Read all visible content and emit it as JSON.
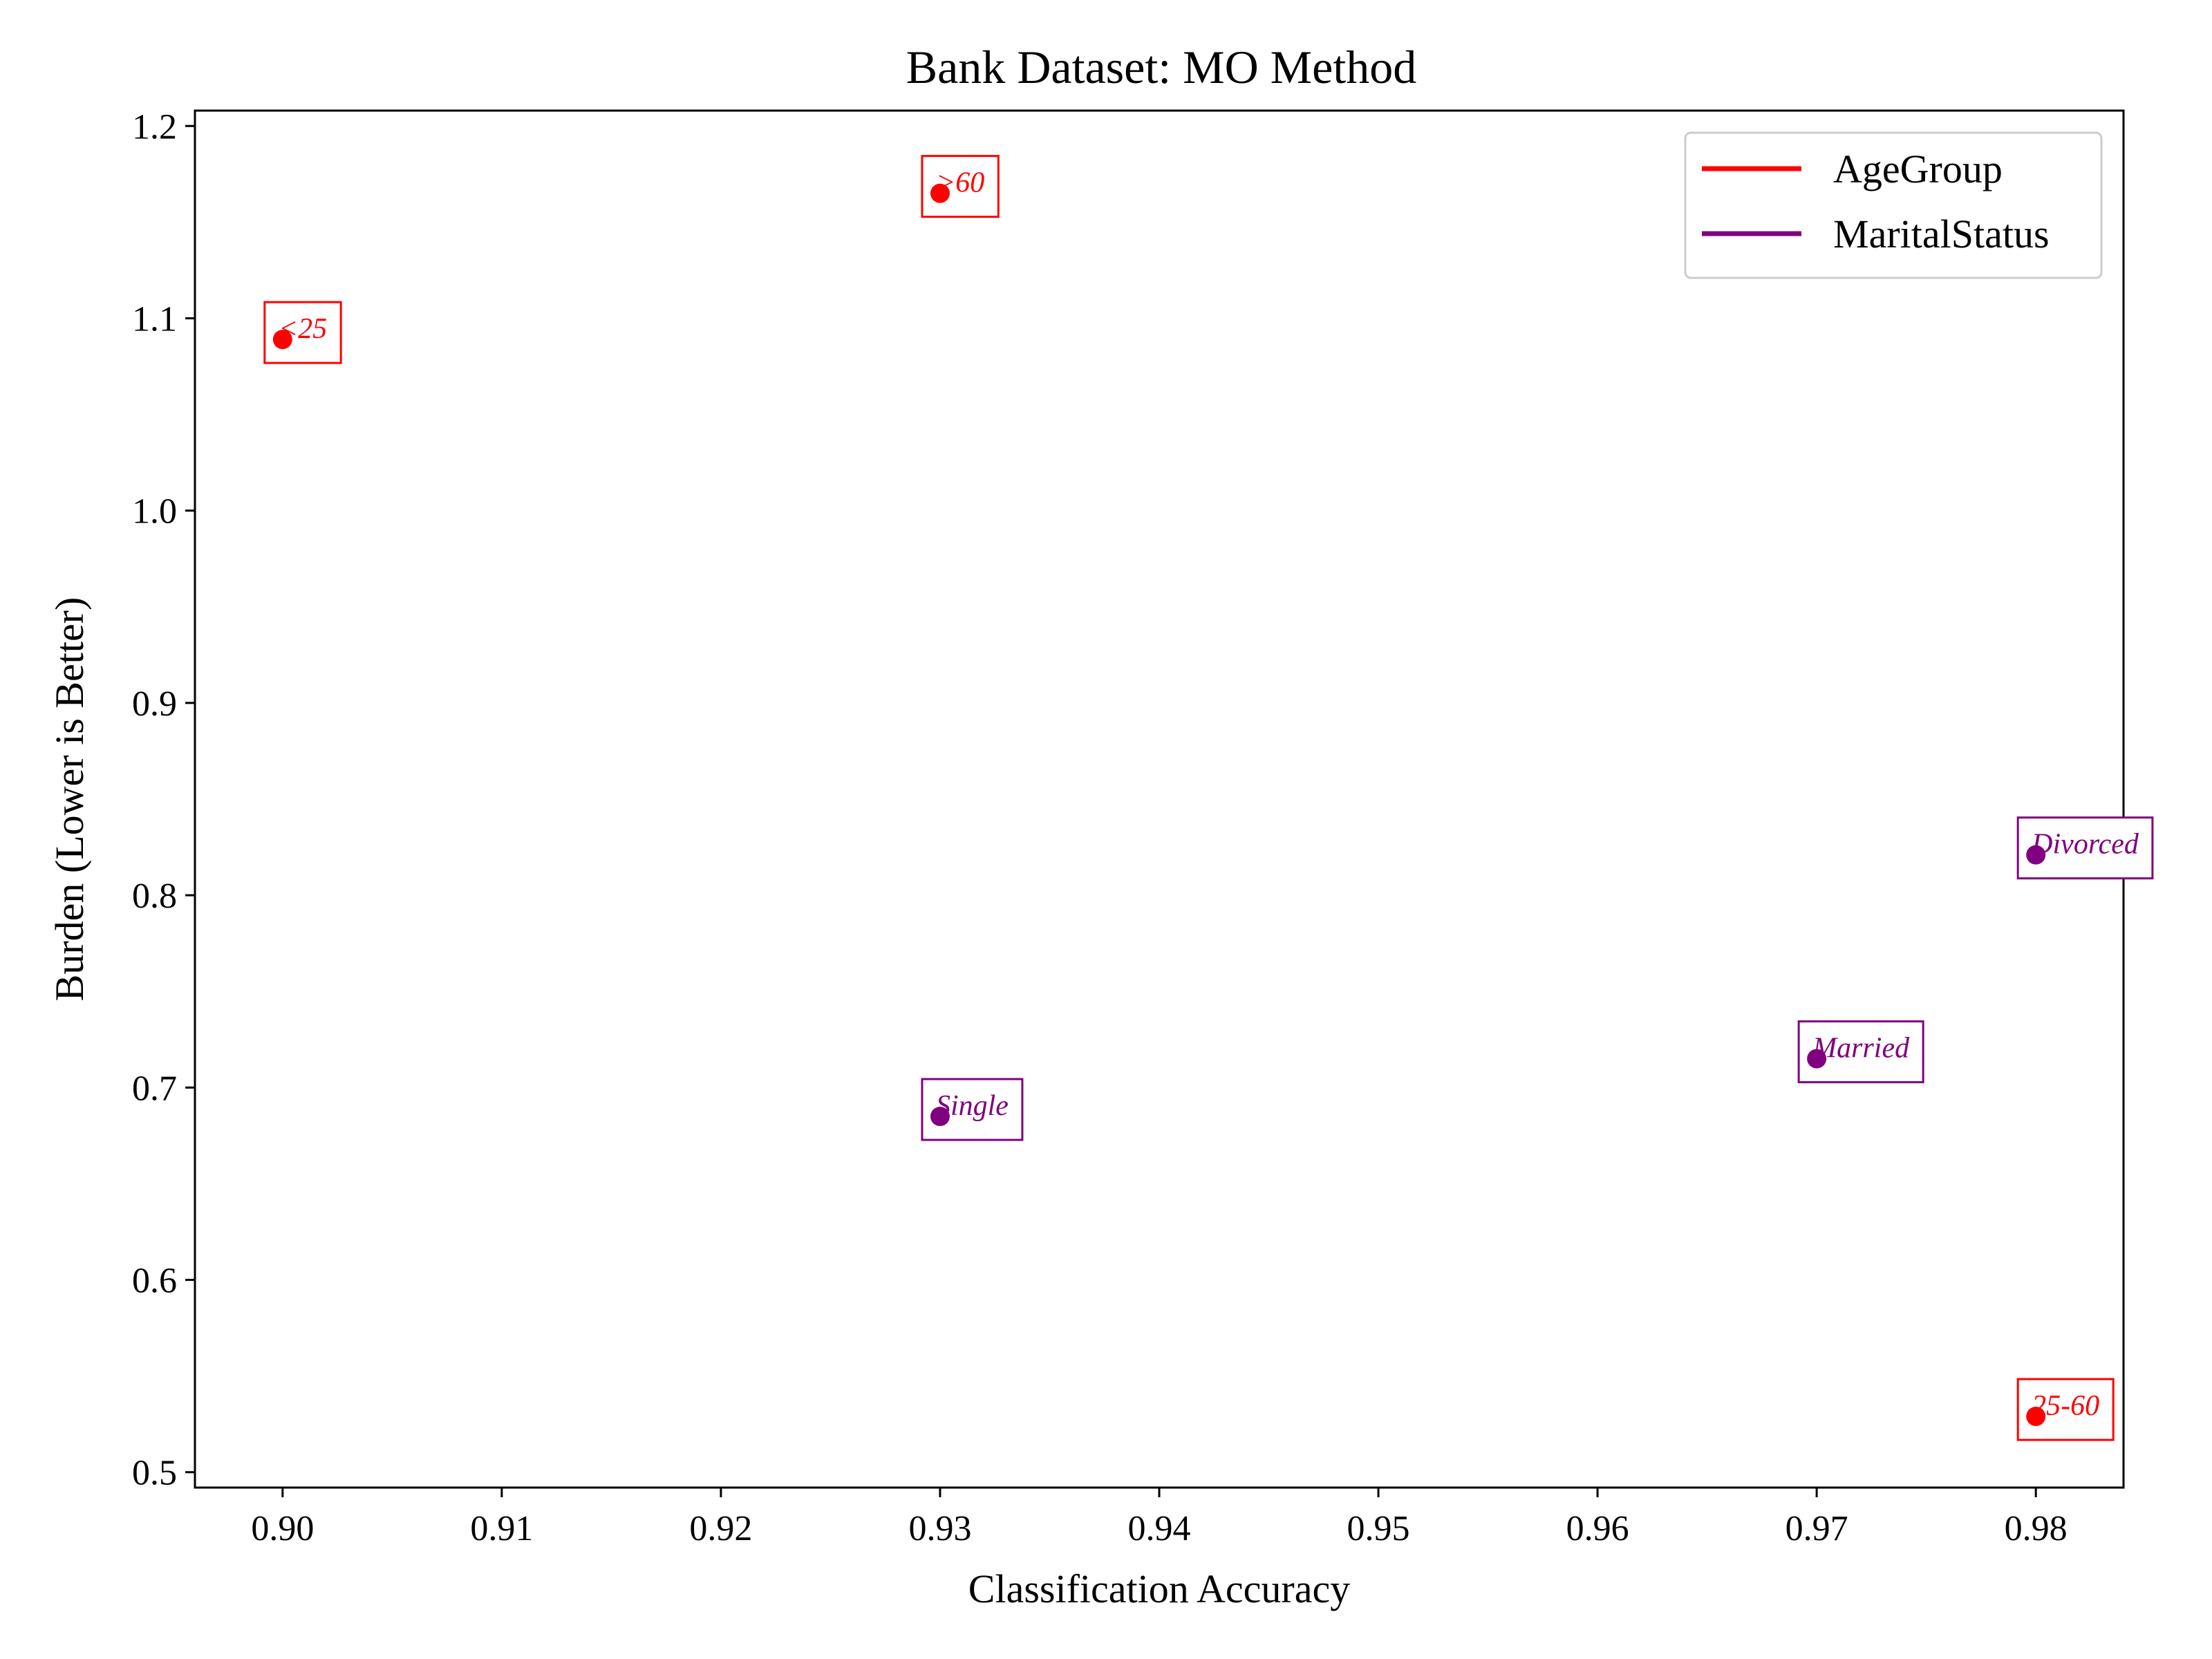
{
  "chart_data": {
    "type": "scatter",
    "title": "Bank Dataset: MO Method",
    "xlabel": "Classification Accuracy",
    "ylabel": "Burden (Lower is Better)",
    "xlim": [
      0.896,
      0.984
    ],
    "ylim": [
      0.492,
      1.208
    ],
    "x_ticks": [
      "0.90",
      "0.91",
      "0.92",
      "0.93",
      "0.94",
      "0.95",
      "0.96",
      "0.97",
      "0.98"
    ],
    "y_ticks": [
      "0.5",
      "0.6",
      "0.7",
      "0.8",
      "0.9",
      "1.0",
      "1.1",
      "1.2"
    ],
    "grid": false,
    "legend_position": "top-right",
    "series": [
      {
        "name": "AgeGroup",
        "color": "#ff0000",
        "points": [
          {
            "label": "<25",
            "x": 0.9,
            "y": 1.089
          },
          {
            "label": ">60",
            "x": 0.93,
            "y": 1.165
          },
          {
            "label": "25-60",
            "x": 0.98,
            "y": 0.529
          }
        ]
      },
      {
        "name": "MaritalStatus",
        "color": "#800080",
        "points": [
          {
            "label": "Single",
            "x": 0.93,
            "y": 0.685
          },
          {
            "label": "Married",
            "x": 0.97,
            "y": 0.715
          },
          {
            "label": "Divorced",
            "x": 0.98,
            "y": 0.821
          }
        ]
      }
    ]
  }
}
